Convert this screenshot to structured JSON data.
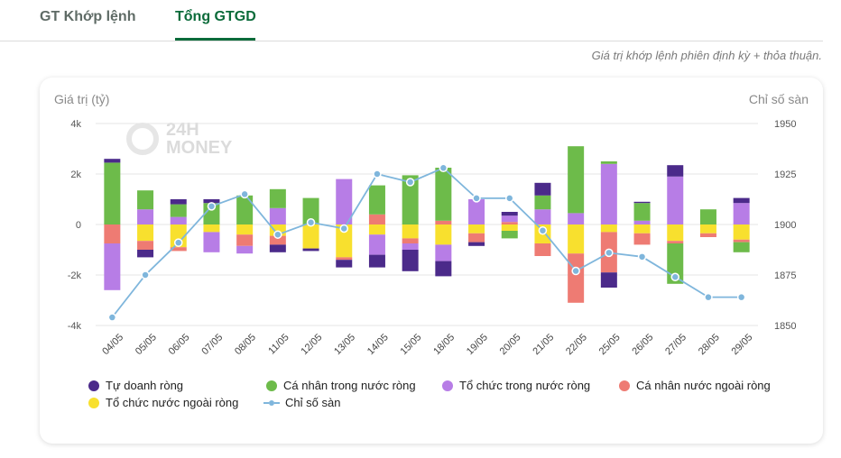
{
  "tabs": [
    {
      "label": "GT Khớp lệnh",
      "active": false
    },
    {
      "label": "Tổng GTGD",
      "active": true
    }
  ],
  "note": "Giá trị khớp lệnh phiên định kỳ + thỏa thuận.",
  "watermark": {
    "line1": "24H",
    "line2": "MONEY"
  },
  "colors": {
    "tu_doanh": "#4b2a8a",
    "ca_nhan_trong_nuoc": "#6dbb4a",
    "to_chuc_trong_nuoc": "#b77de6",
    "ca_nhan_nuoc_ngoai": "#ee7b73",
    "to_chuc_nuoc_ngoai": "#f8e02e",
    "index_line": "#7fb6dc",
    "accent": "#0b6b3a"
  },
  "chart_data": {
    "type": "bar",
    "stacked": true,
    "ylabel_left": "Giá trị (tỷ)",
    "ylabel_right": "Chỉ số sàn",
    "ylim_left": [
      -4000,
      4000
    ],
    "ylim_right": [
      1850,
      1950
    ],
    "yticks_left": [
      "4k",
      "2k",
      "0",
      "-2k",
      "-4k"
    ],
    "yticks_right": [
      "1950",
      "1925",
      "1900",
      "1875",
      "1850"
    ],
    "grid": true,
    "legend_position": "bottom",
    "categories": [
      "04/05",
      "05/05",
      "06/05",
      "07/05",
      "08/05",
      "11/05",
      "12/05",
      "13/05",
      "14/05",
      "15/05",
      "18/05",
      "19/05",
      "20/05",
      "21/05",
      "22/05",
      "25/05",
      "26/05",
      "27/05",
      "28/05",
      "29/05"
    ],
    "series": [
      {
        "name": "Tự doanh ròng",
        "key": "tu_doanh",
        "values": [
          150,
          -300,
          200,
          150,
          0,
          -300,
          -100,
          -300,
          -500,
          -850,
          -600,
          -150,
          150,
          500,
          0,
          -600,
          50,
          450,
          0,
          200
        ]
      },
      {
        "name": "Cá nhân trong nước ròng",
        "key": "ca_nhan_trong_nuoc",
        "values": [
          2450,
          750,
          500,
          850,
          1150,
          750,
          1050,
          0,
          1150,
          1950,
          2100,
          0,
          -300,
          550,
          2650,
          100,
          700,
          -1600,
          600,
          -400
        ]
      },
      {
        "name": "Tổ chức trong nước ròng",
        "key": "to_chuc_trong_nuoc",
        "values": [
          -1850,
          600,
          300,
          -800,
          -300,
          650,
          0,
          1800,
          -800,
          -250,
          -650,
          1000,
          250,
          600,
          450,
          2400,
          150,
          1900,
          0,
          850
        ]
      },
      {
        "name": "Cá nhân nước ngoài ròng",
        "key": "ca_nhan_nuoc_ngoai",
        "values": [
          -750,
          -350,
          -150,
          0,
          -450,
          -350,
          0,
          -100,
          400,
          -200,
          150,
          -350,
          100,
          -500,
          -1950,
          -1600,
          -450,
          -100,
          -150,
          -100
        ]
      },
      {
        "name": "Tổ chức nước ngoài ròng",
        "key": "to_chuc_nuoc_ngoai",
        "values": [
          0,
          -650,
          -900,
          -300,
          -400,
          -450,
          -950,
          -1300,
          -400,
          -550,
          -800,
          -350,
          -250,
          -750,
          -1150,
          -300,
          -350,
          -650,
          -350,
          -600
        ]
      }
    ],
    "line": {
      "name": "Chỉ số sàn",
      "key": "index_line",
      "values": [
        1854,
        1875,
        1891,
        1909,
        1915,
        1895,
        1901,
        1898,
        1925,
        1921,
        1928,
        1913,
        1913,
        1897,
        1877,
        1886,
        1884,
        1874,
        1864,
        1864
      ]
    }
  }
}
